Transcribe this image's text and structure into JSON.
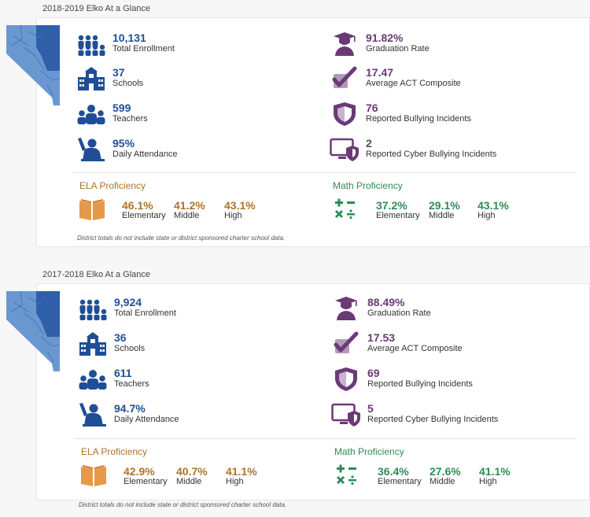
{
  "sections": [
    {
      "title": "2018-2019 Elko At a Glance",
      "left_stats": [
        {
          "value": "10,131",
          "label": "Total Enrollment",
          "icon": "people-group-icon"
        },
        {
          "value": "37",
          "label": "Schools",
          "icon": "school-building-icon"
        },
        {
          "value": "599",
          "label": "Teachers",
          "icon": "teachers-icon"
        },
        {
          "value": "95%",
          "label": "Daily Attendance",
          "icon": "student-raising-hand-icon"
        }
      ],
      "right_stats": [
        {
          "value": "91.82%",
          "label": "Graduation Rate",
          "icon": "graduate-icon"
        },
        {
          "value": "17.47",
          "label": "Average ACT Composite",
          "icon": "checkmark-icon"
        },
        {
          "value": "76",
          "label": "Reported Bullying Incidents",
          "icon": "shield-icon"
        },
        {
          "value": "2",
          "label": "Reported Cyber Bullying Incidents",
          "icon": "monitor-shield-icon"
        }
      ],
      "ela": {
        "title": "ELA Proficiency",
        "values": [
          {
            "value": "46.1%",
            "label": "Elementary"
          },
          {
            "value": "41.2%",
            "label": "Middle"
          },
          {
            "value": "43.1%",
            "label": "High"
          }
        ]
      },
      "math": {
        "title": "Math Proficiency",
        "values": [
          {
            "value": "37.2%",
            "label": "Elementary"
          },
          {
            "value": "29.1%",
            "label": "Middle"
          },
          {
            "value": "43.1%",
            "label": "High"
          }
        ]
      },
      "note": "District totals do not include state or district sponsored charter school data."
    },
    {
      "title": "2017-2018 Elko At a Glance",
      "left_stats": [
        {
          "value": "9,924",
          "label": "Total Enrollment",
          "icon": "people-group-icon"
        },
        {
          "value": "36",
          "label": "Schools",
          "icon": "school-building-icon"
        },
        {
          "value": "611",
          "label": "Teachers",
          "icon": "teachers-icon"
        },
        {
          "value": "94.7%",
          "label": "Daily Attendance",
          "icon": "student-raising-hand-icon"
        }
      ],
      "right_stats": [
        {
          "value": "88.49%",
          "label": "Graduation Rate",
          "icon": "graduate-icon"
        },
        {
          "value": "17.53",
          "label": "Average ACT Composite",
          "icon": "checkmark-icon"
        },
        {
          "value": "69",
          "label": "Reported Bullying Incidents",
          "icon": "shield-icon"
        },
        {
          "value": "5",
          "label": "Reported Cyber Bullying Incidents",
          "icon": "monitor-shield-icon"
        }
      ],
      "ela": {
        "title": "ELA Proficiency",
        "values": [
          {
            "value": "42.9%",
            "label": "Elementary"
          },
          {
            "value": "40.7%",
            "label": "Middle"
          },
          {
            "value": "41.1%",
            "label": "High"
          }
        ]
      },
      "math": {
        "title": "Math Proficiency",
        "values": [
          {
            "value": "36.4%",
            "label": "Elementary"
          },
          {
            "value": "27.6%",
            "label": "Middle"
          },
          {
            "value": "41.1%",
            "label": "High"
          }
        ]
      },
      "note": "District totals do not include state or district sponsored charter school data."
    }
  ],
  "colors": {
    "blue": "#1f4e96",
    "purple": "#6b3a76",
    "ela": "#b0722a",
    "math": "#2e8b57",
    "map_state": "#6b97d1",
    "map_county": "#2f5fa8"
  }
}
